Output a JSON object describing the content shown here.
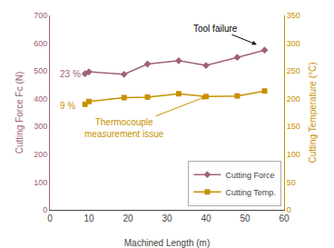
{
  "chart_data": {
    "type": "line",
    "xlabel": "Machined Length (m)",
    "ylabel": "Cutting Force Fc (N)",
    "y2label": "Cutting Temperature (°C)",
    "x": [
      9,
      10,
      19,
      25,
      33,
      40,
      48,
      55
    ],
    "series": [
      {
        "name": "Cutting Force",
        "color": "#a0607a",
        "marker": "diamond",
        "values": [
          490,
          497,
          488,
          525,
          537,
          520,
          549,
          575
        ]
      },
      {
        "name": "Cutting Temp.",
        "color": "#c89000",
        "marker": "square",
        "axis": "y2",
        "values": [
          190,
          195,
          202,
          203,
          209,
          204,
          205,
          214
        ]
      }
    ],
    "xlim": [
      0,
      60
    ],
    "xticks": [
      0,
      10,
      20,
      30,
      40,
      50,
      60
    ],
    "ylim": [
      0,
      700
    ],
    "yticks": [
      0,
      100,
      200,
      300,
      400,
      500,
      600,
      700
    ],
    "y2lim": [
      0,
      350
    ],
    "y2ticks": [
      0,
      50,
      100,
      150,
      200,
      250,
      300,
      350
    ],
    "grid": false,
    "legend": "lower right",
    "annotations": [
      {
        "text": "23 %",
        "x": 2,
        "y": 487.5,
        "color": "#a0607a"
      },
      {
        "text": "9 %",
        "x": 2,
        "y": 375,
        "color": "#c89000"
      },
      {
        "text": "Tool failure",
        "x": 53,
        "y": 595,
        "color": "#000000"
      },
      {
        "text": "Thermocouple\nmeasurement issue",
        "x": 40,
        "y": 204,
        "axis": "y2",
        "color": "#c89000"
      }
    ]
  }
}
